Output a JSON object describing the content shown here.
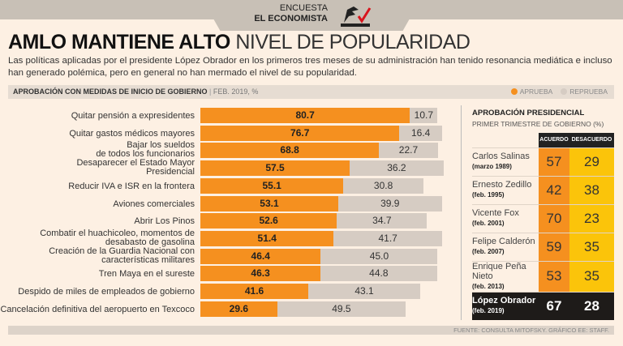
{
  "header": {
    "line1": "ENCUESTA",
    "line2": "EL ECONOMISTA",
    "logo_text": "CONSULTA MITOFSKY"
  },
  "title": {
    "bold": "AMLO MANTIENE ALTO",
    "light": "NIVEL DE POPULARIDAD"
  },
  "subtitle": "Las políticas aplicadas por el presidente López Obrador en los primeros tres meses de su administración han tenido resonancia mediática e incluso han generado polémica, pero en general no han mermado el nivel de su popularidad.",
  "section": {
    "title": "APROBACIÓN CON MEDIDAS DE INICIO DE GOBIERNO",
    "date": "FEB. 2019, %"
  },
  "colors": {
    "aprueba": "#f5901f",
    "reprueba": "#d6ccc3",
    "acuerdo": "#f5901f",
    "desacuerdo": "#fbc40a"
  },
  "chart_data": {
    "type": "bar",
    "stacked": true,
    "orientation": "horizontal",
    "title": "APROBACIÓN CON MEDIDAS DE INICIO DE GOBIERNO",
    "legend": [
      "APRUEBA",
      "REPRUEBA"
    ],
    "legend_position": "top-right",
    "categories": [
      "Quitar pensión a expresidentes",
      "Quitar gastos médicos mayores",
      "Bajar los sueldos\nde todos los funcionarios",
      "Desaparecer el Estado Mayor\nPresidencial",
      "Reducir IVA e ISR en la frontera",
      "Aviones comerciales",
      "Abrir Los Pinos",
      "Combatir el huachicoleo, momentos de\ndesabasto de gasolina",
      "Creación de la Guardia Nacional con\ncaracterísticas militares",
      "Tren Maya en el sureste",
      "Despido de miles de empleados de gobierno",
      "Cancelación definitiva del aeropuerto en Texcoco"
    ],
    "series": [
      {
        "name": "APRUEBA",
        "values": [
          80.7,
          76.7,
          68.8,
          57.5,
          55.1,
          53.1,
          52.6,
          51.4,
          46.4,
          46.3,
          41.6,
          29.6
        ]
      },
      {
        "name": "REPRUEBA",
        "values": [
          10.7,
          16.4,
          22.7,
          36.2,
          30.8,
          39.9,
          34.7,
          41.7,
          45.0,
          44.8,
          43.1,
          49.5
        ]
      }
    ]
  },
  "panel": {
    "title": "APROBACIÓN PRESIDENCIAL",
    "subtitle": "PRIMER TRIMESTRE DE GOBIERNO (%)",
    "col_acuerdo": "ACUERDO",
    "col_desacuerdo": "DESACUERDO",
    "rows": [
      {
        "name": "Carlos Salinas",
        "date": "(marzo 1989)",
        "acuerdo": "57",
        "desacuerdo": "29"
      },
      {
        "name": "Ernesto Zedillo",
        "date": "(feb. 1995)",
        "acuerdo": "42",
        "desacuerdo": "38"
      },
      {
        "name": "Vicente Fox",
        "date": "(feb. 2001)",
        "acuerdo": "70",
        "desacuerdo": "23"
      },
      {
        "name": "Felipe Calderón",
        "date": "(feb. 2007)",
        "acuerdo": "59",
        "desacuerdo": "35"
      },
      {
        "name": "Enrique Peña Nieto",
        "date": "(feb. 2013)",
        "acuerdo": "53",
        "desacuerdo": "35"
      },
      {
        "name": "López Obrador",
        "date": "(feb. 2019)",
        "acuerdo": "67",
        "desacuerdo": "28"
      }
    ]
  },
  "footer": "FUENTE: CONSULTA MITOFSKY. GRÁFICO EE: STAFF."
}
